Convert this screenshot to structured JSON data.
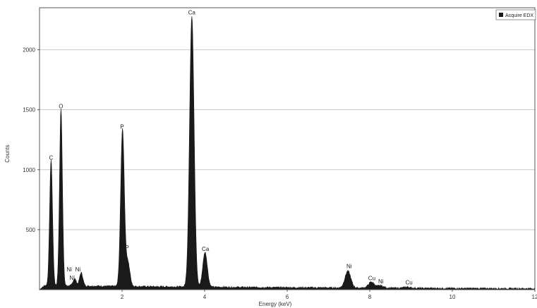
{
  "chart_data": {
    "type": "area",
    "xlabel": "Energy (keV)",
    "ylabel": "Counts",
    "xlim": [
      0,
      12
    ],
    "ylim": [
      0,
      2350
    ],
    "x_ticks": [
      2,
      4,
      6,
      8,
      10,
      12
    ],
    "y_ticks": [
      500,
      1000,
      1500,
      2000
    ],
    "grid": "horizontal",
    "legend_placement": "top-right",
    "series": [
      {
        "name": "Acquire EDX",
        "color": "#1a1a1a",
        "background_level": 35,
        "peaks": [
          {
            "x": 0.28,
            "height": 1050,
            "width": 0.035
          },
          {
            "x": 0.52,
            "height": 1480,
            "width": 0.035
          },
          {
            "x": 0.85,
            "height": 60,
            "width": 0.04
          },
          {
            "x": 1.01,
            "height": 110,
            "width": 0.04
          },
          {
            "x": 2.01,
            "height": 1310,
            "width": 0.045
          },
          {
            "x": 2.14,
            "height": 200,
            "width": 0.05
          },
          {
            "x": 3.69,
            "height": 2260,
            "width": 0.055
          },
          {
            "x": 4.01,
            "height": 290,
            "width": 0.055
          },
          {
            "x": 7.47,
            "height": 140,
            "width": 0.07
          },
          {
            "x": 8.04,
            "height": 50,
            "width": 0.07
          },
          {
            "x": 8.26,
            "height": 20,
            "width": 0.07
          },
          {
            "x": 8.9,
            "height": 10,
            "width": 0.07
          }
        ]
      }
    ],
    "peak_labels": [
      {
        "text": "C",
        "x": 0.28,
        "y": 1060
      },
      {
        "text": "O",
        "x": 0.52,
        "y": 1490
      },
      {
        "text": "Ni",
        "x": 0.72,
        "y": 130
      },
      {
        "text": "Ni",
        "x": 0.79,
        "y": 60
      },
      {
        "text": "Ni",
        "x": 0.93,
        "y": 130
      },
      {
        "text": "P",
        "x": 2.0,
        "y": 1320
      },
      {
        "text": "P",
        "x": 2.12,
        "y": 310
      },
      {
        "text": "Ca",
        "x": 3.69,
        "y": 2270
      },
      {
        "text": "Ca",
        "x": 4.02,
        "y": 300
      },
      {
        "text": "Ni",
        "x": 7.5,
        "y": 155
      },
      {
        "text": "Cu",
        "x": 8.05,
        "y": 55
      },
      {
        "text": "Ni",
        "x": 8.27,
        "y": 30
      },
      {
        "text": "Cu",
        "x": 8.95,
        "y": 20
      }
    ]
  }
}
